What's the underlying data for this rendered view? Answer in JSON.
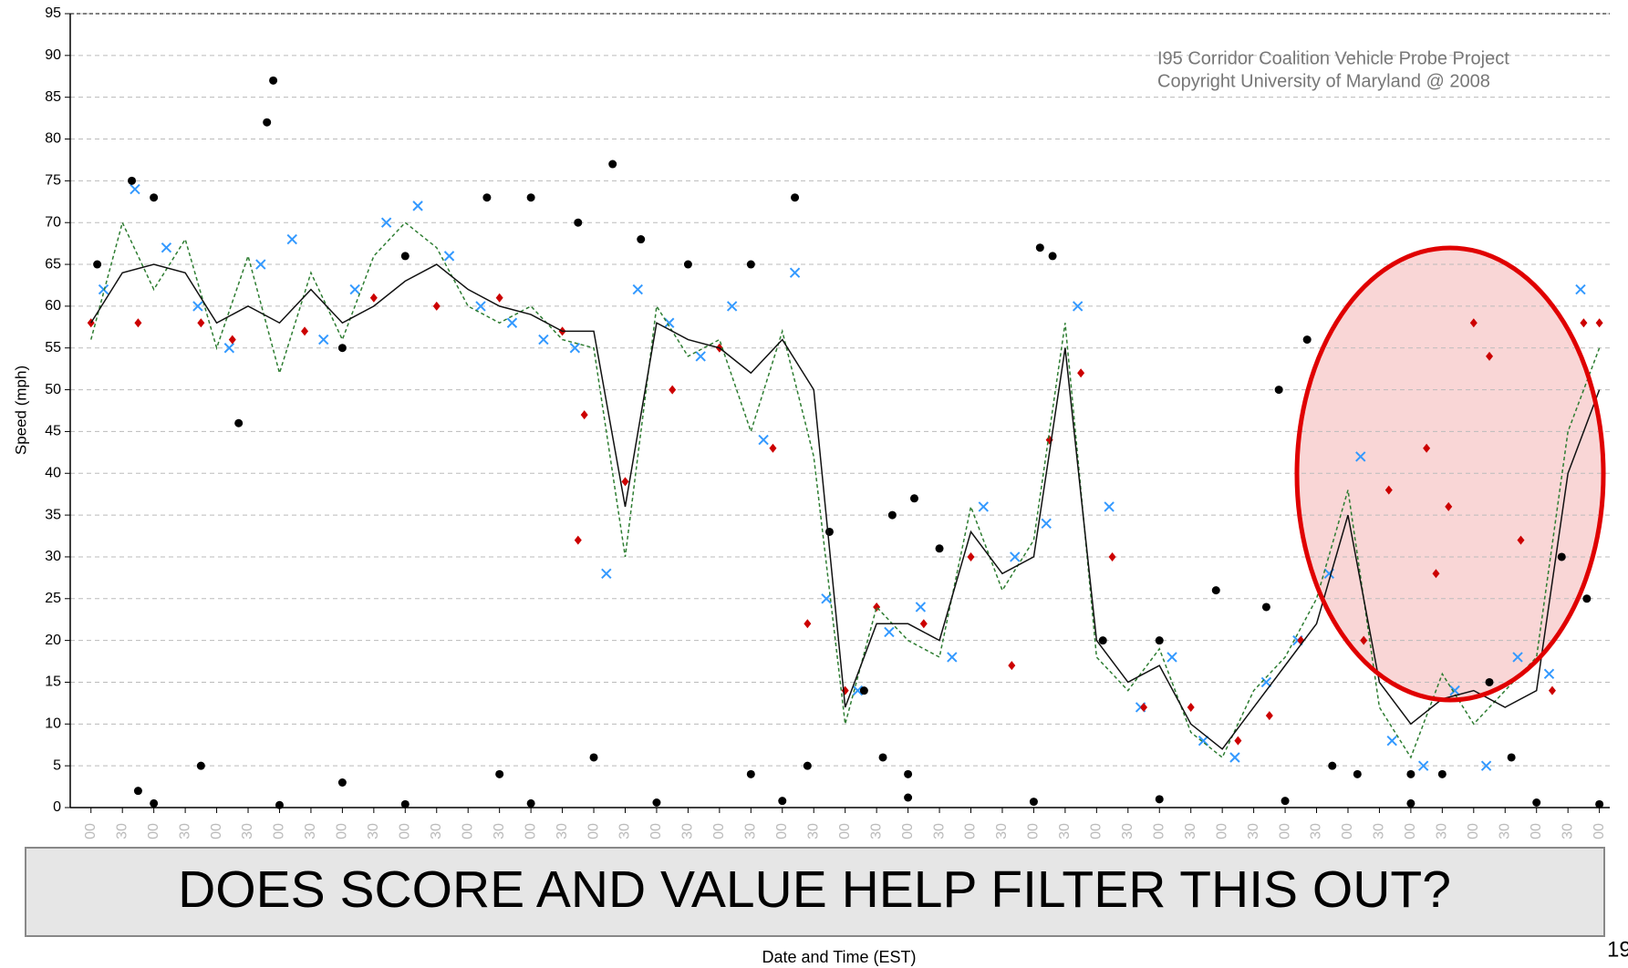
{
  "chart_data": {
    "type": "scatter",
    "annotations": [
      "I95 Corridor Coalition Vehicle Probe Project",
      "Copyright University of Maryland @ 2008"
    ],
    "y_label": "Speed (mph)",
    "x_label": "Date and Time (EST)",
    "callout": "DOES SCORE AND VALUE HELP FILTER THIS OUT?",
    "page_number": "19",
    "ylim": [
      0,
      95
    ],
    "yticks": [
      0,
      5,
      10,
      15,
      20,
      25,
      30,
      35,
      40,
      45,
      50,
      55,
      60,
      65,
      70,
      75,
      80,
      85,
      90,
      95
    ],
    "xlim": [
      -0.66,
      48.33
    ],
    "xticks": [
      {
        "value": 0,
        "label": "00"
      },
      {
        "value": 1,
        "label": "30"
      },
      {
        "value": 2,
        "label": "00"
      },
      {
        "value": 3,
        "label": "30"
      },
      {
        "value": 4,
        "label": "00"
      },
      {
        "value": 5,
        "label": "30"
      },
      {
        "value": 6,
        "label": "00"
      },
      {
        "value": 7,
        "label": "30"
      },
      {
        "value": 8,
        "label": "00"
      },
      {
        "value": 9,
        "label": "30"
      },
      {
        "value": 10,
        "label": "00"
      },
      {
        "value": 11,
        "label": "30"
      },
      {
        "value": 12,
        "label": "00"
      },
      {
        "value": 13,
        "label": "30"
      },
      {
        "value": 14,
        "label": "00"
      },
      {
        "value": 15,
        "label": "30"
      },
      {
        "value": 16,
        "label": "00"
      },
      {
        "value": 17,
        "label": "30"
      },
      {
        "value": 18,
        "label": "00"
      },
      {
        "value": 19,
        "label": "30"
      },
      {
        "value": 20,
        "label": "00"
      },
      {
        "value": 21,
        "label": "30"
      },
      {
        "value": 22,
        "label": "00"
      },
      {
        "value": 23,
        "label": "30"
      },
      {
        "value": 24,
        "label": "00"
      },
      {
        "value": 25,
        "label": "30"
      },
      {
        "value": 26,
        "label": "00"
      },
      {
        "value": 27,
        "label": "30"
      },
      {
        "value": 28,
        "label": "00"
      },
      {
        "value": 29,
        "label": "30"
      },
      {
        "value": 30,
        "label": "00"
      },
      {
        "value": 31,
        "label": "30"
      },
      {
        "value": 32,
        "label": "00"
      },
      {
        "value": 33,
        "label": "30"
      },
      {
        "value": 34,
        "label": "00"
      },
      {
        "value": 35,
        "label": "30"
      },
      {
        "value": 36,
        "label": "00"
      },
      {
        "value": 37,
        "label": "30"
      },
      {
        "value": 38,
        "label": "00"
      },
      {
        "value": 39,
        "label": "30"
      },
      {
        "value": 40,
        "label": "00"
      },
      {
        "value": 41,
        "label": "30"
      },
      {
        "value": 42,
        "label": "00"
      },
      {
        "value": 43,
        "label": "30"
      },
      {
        "value": 44,
        "label": "00"
      },
      {
        "value": 45,
        "label": "30"
      },
      {
        "value": 46,
        "label": "00"
      },
      {
        "value": 47,
        "label": "30"
      },
      {
        "value": 48,
        "label": "00"
      }
    ],
    "grid": true,
    "series": [
      {
        "kind": "points",
        "marker": "x",
        "color": "#3399ff",
        "x": [
          0.4,
          1.4,
          2.4,
          3.4,
          4.4,
          5.4,
          6.4,
          7.4,
          8.4,
          9.4,
          10.4,
          11.4,
          12.4,
          13.4,
          14.4,
          15.4,
          16.4,
          17.4,
          18.4,
          19.4,
          20.4,
          21.4,
          22.4,
          23.4,
          24.4,
          25.4,
          26.4,
          27.4,
          28.4,
          29.4,
          30.4,
          31.4,
          32.4,
          33.4,
          34.4,
          35.4,
          36.4,
          37.4,
          38.4,
          39.4,
          40.4,
          41.4,
          42.4,
          43.4,
          44.4,
          45.4,
          46.4,
          47.4
        ],
        "values": [
          62,
          74,
          67,
          60,
          55,
          65,
          68,
          56,
          62,
          70,
          72,
          66,
          60,
          58,
          56,
          55,
          28,
          62,
          58,
          54,
          60,
          44,
          64,
          25,
          14,
          21,
          24,
          18,
          36,
          30,
          34,
          60,
          36,
          12,
          18,
          8,
          6,
          15,
          20,
          28,
          42,
          8,
          5,
          14,
          5,
          18,
          16,
          62
        ]
      },
      {
        "kind": "points",
        "marker": "dot",
        "color": "#000000",
        "x": [
          0.2,
          1.3,
          2,
          5.6,
          5.8,
          4.7,
          8,
          10,
          12.6,
          14,
          15.5,
          16.6,
          17.5,
          19,
          21,
          22.4,
          23.5,
          24.6,
          25.5,
          26.2,
          27,
          30.2,
          30.6,
          32.2,
          34,
          35.8,
          37.4,
          37.8,
          38.7,
          39.5,
          40.3,
          42,
          43,
          44.5,
          45.2,
          46.8,
          47.6,
          1.5,
          3.5,
          8,
          13,
          16,
          21,
          22.8,
          25.2,
          26,
          2,
          6,
          10,
          14,
          18,
          22,
          26,
          30,
          34,
          38,
          42,
          46,
          48
        ],
        "values": [
          65,
          75,
          73,
          82,
          87,
          46,
          55,
          66,
          73,
          73,
          70,
          77,
          68,
          65,
          65,
          73,
          33,
          14,
          35,
          37,
          31,
          67,
          66,
          20,
          20,
          26,
          24,
          50,
          56,
          5,
          4,
          4,
          4,
          15,
          6,
          30,
          25,
          2,
          5,
          3,
          4,
          6,
          4,
          5,
          6,
          4,
          0.5,
          0.3,
          0.4,
          0.5,
          0.6,
          0.8,
          1.2,
          0.7,
          1,
          0.8,
          0.5,
          0.6,
          0.4
        ]
      },
      {
        "kind": "points",
        "marker": "diamond",
        "color": "#cc0000",
        "x": [
          0,
          1.5,
          3.5,
          4.5,
          6.8,
          9,
          11,
          13,
          15,
          15.7,
          15.5,
          17,
          18.5,
          20,
          21.7,
          22.8,
          24,
          25,
          26.5,
          28,
          29.3,
          30.5,
          31.5,
          32.5,
          33.5,
          35,
          36.5,
          37.5,
          38.5,
          40.5,
          41.3,
          42.5,
          43.2,
          42.8,
          44,
          44.5,
          45.5,
          46.5,
          47.5,
          48
        ],
        "values": [
          58,
          58,
          58,
          56,
          57,
          61,
          60,
          61,
          57,
          47,
          32,
          39,
          50,
          55,
          43,
          22,
          14,
          24,
          22,
          30,
          17,
          44,
          52,
          30,
          12,
          12,
          8,
          11,
          20,
          20,
          38,
          43,
          36,
          28,
          58,
          54,
          32,
          14,
          58,
          58
        ]
      },
      {
        "kind": "line",
        "dash": true,
        "color": "#2e7d32",
        "x": [
          0,
          1,
          2,
          3,
          4,
          5,
          6,
          7,
          8,
          9,
          10,
          11,
          12,
          13,
          14,
          15,
          16,
          17,
          18,
          19,
          20,
          21,
          22,
          23,
          24,
          25,
          26,
          27,
          28,
          29,
          30,
          31,
          32,
          33,
          34,
          35,
          36,
          37,
          38,
          39,
          40,
          41,
          42,
          43,
          44,
          45,
          46,
          47,
          48
        ],
        "values": [
          56,
          70,
          62,
          68,
          55,
          66,
          52,
          64,
          56,
          66,
          70,
          67,
          60,
          58,
          60,
          56,
          55,
          30,
          60,
          54,
          56,
          45,
          57,
          42,
          10,
          24,
          20,
          18,
          36,
          26,
          32,
          58,
          18,
          14,
          19,
          9,
          6,
          14,
          18,
          25,
          38,
          12,
          6,
          16,
          10,
          14,
          18,
          45,
          55
        ]
      },
      {
        "kind": "line",
        "dash": false,
        "color": "#111111",
        "x": [
          0,
          1,
          2,
          3,
          4,
          5,
          6,
          7,
          8,
          9,
          10,
          11,
          12,
          13,
          14,
          15,
          16,
          17,
          18,
          19,
          20,
          21,
          22,
          23,
          24,
          25,
          26,
          27,
          28,
          29,
          30,
          31,
          32,
          33,
          34,
          35,
          36,
          37,
          38,
          39,
          40,
          41,
          42,
          43,
          44,
          45,
          46,
          47,
          48
        ],
        "values": [
          58,
          64,
          65,
          64,
          58,
          60,
          58,
          62,
          58,
          60,
          63,
          65,
          62,
          60,
          59,
          57,
          57,
          36,
          58,
          56,
          55,
          52,
          56,
          50,
          12,
          22,
          22,
          20,
          33,
          28,
          30,
          55,
          20,
          15,
          17,
          10,
          7,
          12,
          17,
          22,
          35,
          15,
          10,
          13,
          14,
          12,
          14,
          40,
          50
        ]
      }
    ]
  }
}
